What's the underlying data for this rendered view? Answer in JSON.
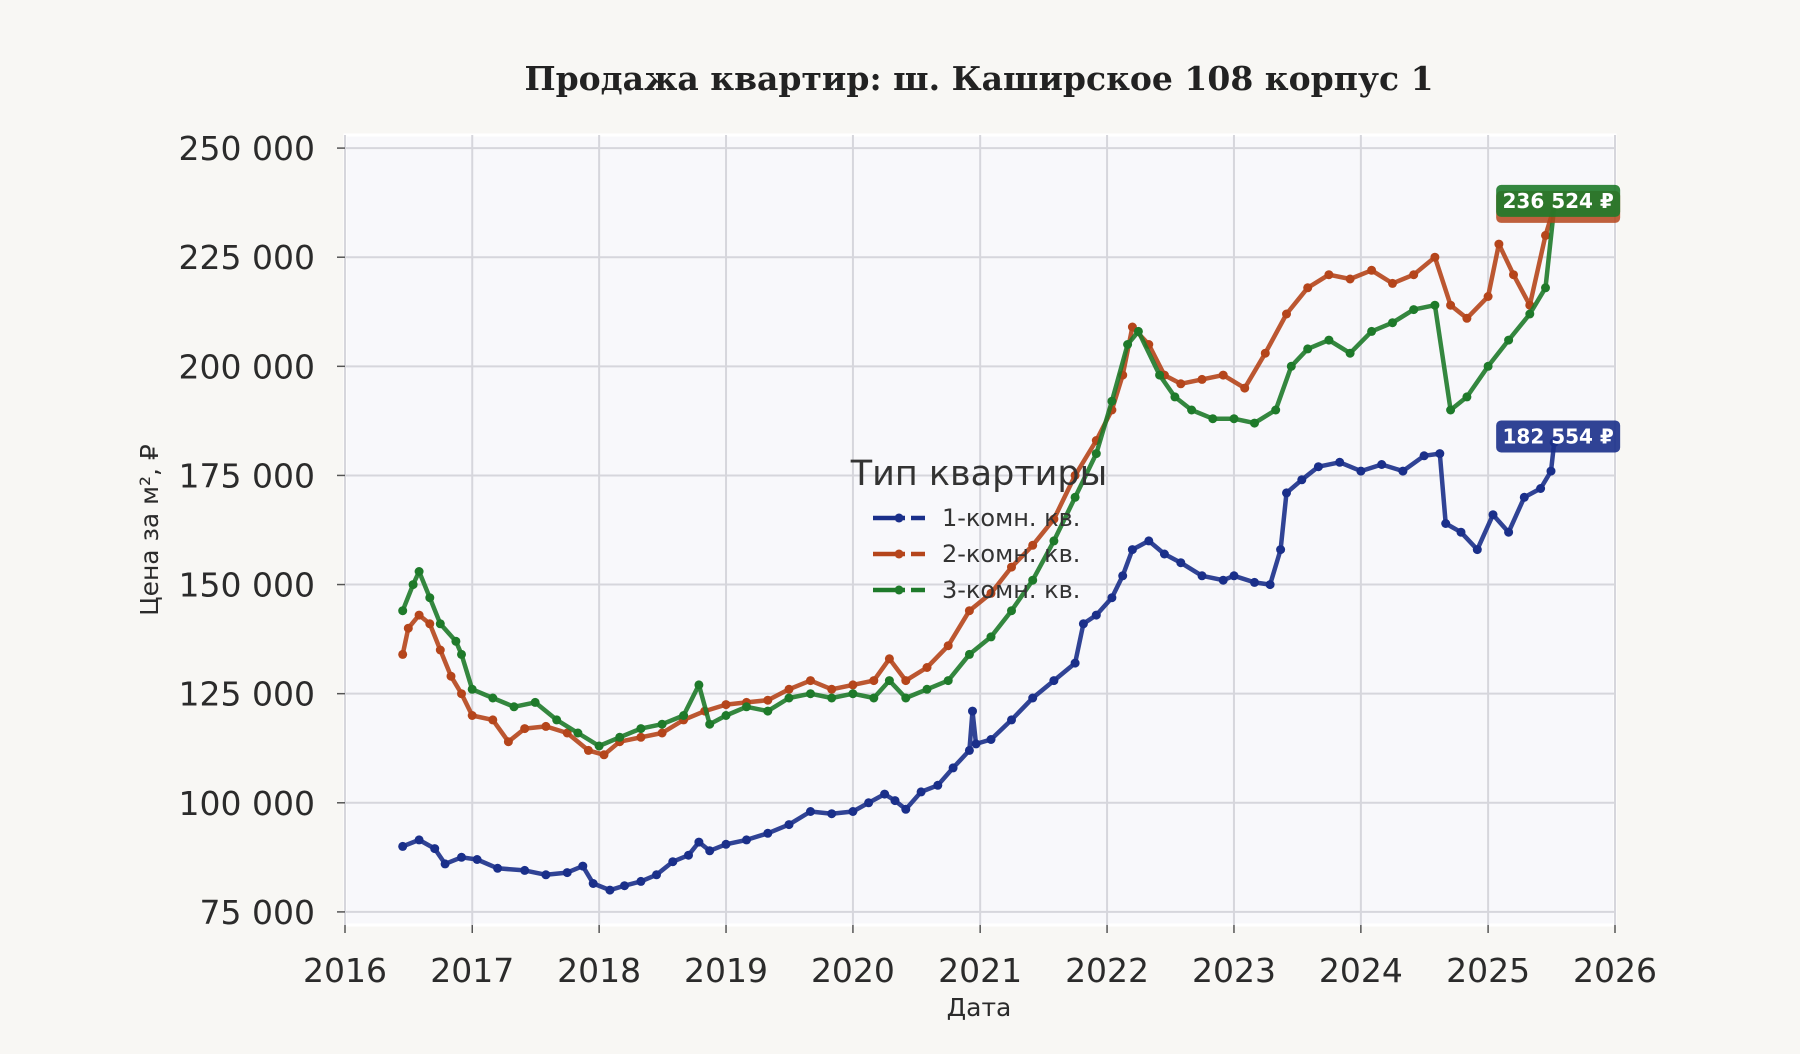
{
  "chart_data": {
    "type": "line",
    "title": "Продажа квартир: ш. Каширское 108 корпус 1",
    "xlabel": "Дата",
    "ylabel": "Цена за м², ₽",
    "xlim": [
      "2016-01-01",
      "2026-01-01"
    ],
    "ylim": [
      72000,
      253000
    ],
    "x_ticks": [
      "2016",
      "2017",
      "2018",
      "2019",
      "2020",
      "2021",
      "2022",
      "2023",
      "2024",
      "2025",
      "2026"
    ],
    "y_ticks": [
      "75 000",
      "100 000",
      "125 000",
      "150 000",
      "175 000",
      "200 000",
      "225 000",
      "250 000"
    ],
    "y_tick_values": [
      75000,
      100000,
      125000,
      150000,
      175000,
      200000,
      225000,
      250000
    ],
    "grid": true,
    "legend": {
      "title": "Тип квартиры",
      "position": "center"
    },
    "series": [
      {
        "name": "1-комн. кв.",
        "color": "#1a2f8a",
        "end_label": "182 554 ₽",
        "points": [
          [
            "2016-06-15",
            90000
          ],
          [
            "2016-08-01",
            91500
          ],
          [
            "2016-09-15",
            89500
          ],
          [
            "2016-10-15",
            86000
          ],
          [
            "2016-12-01",
            87500
          ],
          [
            "2017-01-15",
            87000
          ],
          [
            "2017-03-15",
            85000
          ],
          [
            "2017-06-01",
            84500
          ],
          [
            "2017-08-01",
            83500
          ],
          [
            "2017-10-01",
            84000
          ],
          [
            "2017-11-15",
            85500
          ],
          [
            "2017-12-15",
            81500
          ],
          [
            "2018-02-01",
            80000
          ],
          [
            "2018-03-15",
            81000
          ],
          [
            "2018-05-01",
            82000
          ],
          [
            "2018-06-15",
            83500
          ],
          [
            "2018-08-01",
            86500
          ],
          [
            "2018-09-15",
            88000
          ],
          [
            "2018-10-15",
            91000
          ],
          [
            "2018-11-15",
            89000
          ],
          [
            "2019-01-01",
            90500
          ],
          [
            "2019-03-01",
            91500
          ],
          [
            "2019-05-01",
            93000
          ],
          [
            "2019-07-01",
            95000
          ],
          [
            "2019-09-01",
            98000
          ],
          [
            "2019-11-01",
            97500
          ],
          [
            "2020-01-01",
            98000
          ],
          [
            "2020-02-15",
            100000
          ],
          [
            "2020-04-01",
            102000
          ],
          [
            "2020-05-01",
            100500
          ],
          [
            "2020-06-01",
            98500
          ],
          [
            "2020-07-15",
            102500
          ],
          [
            "2020-09-01",
            104000
          ],
          [
            "2020-10-15",
            108000
          ],
          [
            "2020-12-01",
            112000
          ],
          [
            "2020-12-10",
            121000
          ],
          [
            "2020-12-20",
            113500
          ],
          [
            "2021-02-01",
            114500
          ],
          [
            "2021-04-01",
            119000
          ],
          [
            "2021-06-01",
            124000
          ],
          [
            "2021-08-01",
            128000
          ],
          [
            "2021-10-01",
            132000
          ],
          [
            "2021-10-25",
            141000
          ],
          [
            "2021-12-01",
            143000
          ],
          [
            "2022-01-15",
            147000
          ],
          [
            "2022-02-15",
            152000
          ],
          [
            "2022-03-15",
            158000
          ],
          [
            "2022-05-01",
            160000
          ],
          [
            "2022-06-15",
            157000
          ],
          [
            "2022-08-01",
            155000
          ],
          [
            "2022-10-01",
            152000
          ],
          [
            "2022-12-01",
            151000
          ],
          [
            "2023-01-01",
            152000
          ],
          [
            "2023-03-01",
            150500
          ],
          [
            "2023-04-15",
            150000
          ],
          [
            "2023-05-15",
            158000
          ],
          [
            "2023-06-01",
            171000
          ],
          [
            "2023-07-15",
            174000
          ],
          [
            "2023-09-01",
            177000
          ],
          [
            "2023-11-01",
            178000
          ],
          [
            "2024-01-01",
            176000
          ],
          [
            "2024-03-01",
            177500
          ],
          [
            "2024-05-01",
            176000
          ],
          [
            "2024-07-01",
            179500
          ],
          [
            "2024-08-15",
            180000
          ],
          [
            "2024-09-01",
            164000
          ],
          [
            "2024-10-15",
            162000
          ],
          [
            "2024-12-01",
            158000
          ],
          [
            "2025-01-15",
            166000
          ],
          [
            "2025-03-01",
            162000
          ],
          [
            "2025-04-15",
            170000
          ],
          [
            "2025-06-01",
            172000
          ],
          [
            "2025-07-01",
            176000
          ],
          [
            "2025-07-10",
            182554
          ]
        ]
      },
      {
        "name": "2-комн. кв.",
        "color": "#b5451b",
        "end_label": "236 524 ₽",
        "points": [
          [
            "2016-06-15",
            134000
          ],
          [
            "2016-07-01",
            140000
          ],
          [
            "2016-08-01",
            143000
          ],
          [
            "2016-09-01",
            141000
          ],
          [
            "2016-10-01",
            135000
          ],
          [
            "2016-11-01",
            129000
          ],
          [
            "2016-12-01",
            125000
          ],
          [
            "2017-01-01",
            120000
          ],
          [
            "2017-03-01",
            119000
          ],
          [
            "2017-04-15",
            114000
          ],
          [
            "2017-06-01",
            117000
          ],
          [
            "2017-08-01",
            117500
          ],
          [
            "2017-10-01",
            116000
          ],
          [
            "2017-12-01",
            112000
          ],
          [
            "2018-01-15",
            111000
          ],
          [
            "2018-03-01",
            114000
          ],
          [
            "2018-05-01",
            115000
          ],
          [
            "2018-07-01",
            116000
          ],
          [
            "2018-09-01",
            119000
          ],
          [
            "2018-11-01",
            121000
          ],
          [
            "2019-01-01",
            122500
          ],
          [
            "2019-03-01",
            123000
          ],
          [
            "2019-05-01",
            123500
          ],
          [
            "2019-07-01",
            126000
          ],
          [
            "2019-09-01",
            128000
          ],
          [
            "2019-11-01",
            126000
          ],
          [
            "2020-01-01",
            127000
          ],
          [
            "2020-03-01",
            128000
          ],
          [
            "2020-04-15",
            133000
          ],
          [
            "2020-06-01",
            128000
          ],
          [
            "2020-08-01",
            131000
          ],
          [
            "2020-10-01",
            136000
          ],
          [
            "2020-12-01",
            144000
          ],
          [
            "2021-02-01",
            148000
          ],
          [
            "2021-04-01",
            154000
          ],
          [
            "2021-06-01",
            159000
          ],
          [
            "2021-08-01",
            165000
          ],
          [
            "2021-10-01",
            175000
          ],
          [
            "2021-12-01",
            183000
          ],
          [
            "2022-01-15",
            190000
          ],
          [
            "2022-02-15",
            198000
          ],
          [
            "2022-03-15",
            209000
          ],
          [
            "2022-05-01",
            205000
          ],
          [
            "2022-06-15",
            198000
          ],
          [
            "2022-08-01",
            196000
          ],
          [
            "2022-10-01",
            197000
          ],
          [
            "2022-12-01",
            198000
          ],
          [
            "2023-02-01",
            195000
          ],
          [
            "2023-04-01",
            203000
          ],
          [
            "2023-06-01",
            212000
          ],
          [
            "2023-08-01",
            218000
          ],
          [
            "2023-10-01",
            221000
          ],
          [
            "2023-12-01",
            220000
          ],
          [
            "2024-02-01",
            222000
          ],
          [
            "2024-04-01",
            219000
          ],
          [
            "2024-06-01",
            221000
          ],
          [
            "2024-08-01",
            225000
          ],
          [
            "2024-09-15",
            214000
          ],
          [
            "2024-11-01",
            211000
          ],
          [
            "2025-01-01",
            216000
          ],
          [
            "2025-02-01",
            228000
          ],
          [
            "2025-03-15",
            221000
          ],
          [
            "2025-05-01",
            214000
          ],
          [
            "2025-06-15",
            230000
          ],
          [
            "2025-07-10",
            236524
          ]
        ]
      },
      {
        "name": "3-комн. кв.",
        "color": "#1e7a2a",
        "end_label": "236 524 ₽",
        "points": [
          [
            "2016-06-15",
            144000
          ],
          [
            "2016-07-15",
            150000
          ],
          [
            "2016-08-01",
            153000
          ],
          [
            "2016-09-01",
            147000
          ],
          [
            "2016-10-01",
            141000
          ],
          [
            "2016-11-15",
            137000
          ],
          [
            "2016-12-01",
            134000
          ],
          [
            "2017-01-01",
            126000
          ],
          [
            "2017-03-01",
            124000
          ],
          [
            "2017-05-01",
            122000
          ],
          [
            "2017-07-01",
            123000
          ],
          [
            "2017-09-01",
            119000
          ],
          [
            "2017-11-01",
            116000
          ],
          [
            "2018-01-01",
            113000
          ],
          [
            "2018-03-01",
            115000
          ],
          [
            "2018-05-01",
            117000
          ],
          [
            "2018-07-01",
            118000
          ],
          [
            "2018-09-01",
            120000
          ],
          [
            "2018-10-15",
            127000
          ],
          [
            "2018-11-15",
            118000
          ],
          [
            "2019-01-01",
            120000
          ],
          [
            "2019-03-01",
            122000
          ],
          [
            "2019-05-01",
            121000
          ],
          [
            "2019-07-01",
            124000
          ],
          [
            "2019-09-01",
            125000
          ],
          [
            "2019-11-01",
            124000
          ],
          [
            "2020-01-01",
            125000
          ],
          [
            "2020-03-01",
            124000
          ],
          [
            "2020-04-15",
            128000
          ],
          [
            "2020-06-01",
            124000
          ],
          [
            "2020-08-01",
            126000
          ],
          [
            "2020-10-01",
            128000
          ],
          [
            "2020-12-01",
            134000
          ],
          [
            "2021-02-01",
            138000
          ],
          [
            "2021-04-01",
            144000
          ],
          [
            "2021-06-01",
            151000
          ],
          [
            "2021-08-01",
            160000
          ],
          [
            "2021-10-01",
            170000
          ],
          [
            "2021-12-01",
            180000
          ],
          [
            "2022-01-15",
            192000
          ],
          [
            "2022-03-01",
            205000
          ],
          [
            "2022-04-01",
            208000
          ],
          [
            "2022-06-01",
            198000
          ],
          [
            "2022-07-15",
            193000
          ],
          [
            "2022-09-01",
            190000
          ],
          [
            "2022-11-01",
            188000
          ],
          [
            "2023-01-01",
            188000
          ],
          [
            "2023-03-01",
            187000
          ],
          [
            "2023-05-01",
            190000
          ],
          [
            "2023-06-15",
            200000
          ],
          [
            "2023-08-01",
            204000
          ],
          [
            "2023-10-01",
            206000
          ],
          [
            "2023-12-01",
            203000
          ],
          [
            "2024-02-01",
            208000
          ],
          [
            "2024-04-01",
            210000
          ],
          [
            "2024-06-01",
            213000
          ],
          [
            "2024-08-01",
            214000
          ],
          [
            "2024-09-15",
            190000
          ],
          [
            "2024-11-01",
            193000
          ],
          [
            "2025-01-01",
            200000
          ],
          [
            "2025-03-01",
            206000
          ],
          [
            "2025-05-01",
            212000
          ],
          [
            "2025-06-15",
            218000
          ],
          [
            "2025-07-10",
            236524
          ]
        ]
      }
    ]
  }
}
